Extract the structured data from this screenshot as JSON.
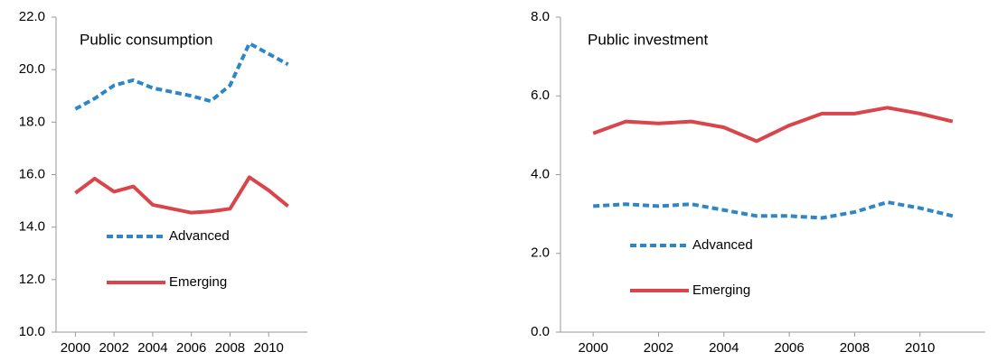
{
  "chart_data": [
    {
      "type": "line",
      "title": "Public consumption",
      "x": [
        2000,
        2001,
        2002,
        2003,
        2004,
        2005,
        2006,
        2007,
        2008,
        2009,
        2010,
        2011
      ],
      "xlim": [
        1999,
        2012
      ],
      "xticks": [
        2000,
        2002,
        2004,
        2006,
        2008,
        2010
      ],
      "ylim": [
        10,
        22
      ],
      "yticks": [
        {
          "value": 10,
          "label": "10.0"
        },
        {
          "value": 12,
          "label": "12.0"
        },
        {
          "value": 14,
          "label": "14.0"
        },
        {
          "value": 16,
          "label": "16.0"
        },
        {
          "value": 18,
          "label": "18.0"
        },
        {
          "value": 20,
          "label": "20.0"
        },
        {
          "value": 22,
          "label": "22.0"
        }
      ],
      "series": [
        {
          "name": "Advanced",
          "color": "#2e86c8",
          "dashed": true,
          "values": [
            18.5,
            18.9,
            19.4,
            19.6,
            19.3,
            19.15,
            19.0,
            18.8,
            19.4,
            21.0,
            20.6,
            20.2
          ]
        },
        {
          "name": "Emerging",
          "color": "#d9454a",
          "dashed": false,
          "values": [
            15.3,
            15.85,
            15.35,
            15.55,
            14.85,
            14.7,
            14.55,
            14.6,
            14.7,
            15.9,
            15.4,
            14.8
          ]
        }
      ]
    },
    {
      "type": "line",
      "title": "Public investment",
      "x": [
        2000,
        2001,
        2002,
        2003,
        2004,
        2005,
        2006,
        2007,
        2008,
        2009,
        2010,
        2011
      ],
      "xlim": [
        1999,
        2012
      ],
      "xticks": [
        2000,
        2002,
        2004,
        2006,
        2008,
        2010
      ],
      "ylim": [
        0,
        8
      ],
      "yticks": [
        {
          "value": 0,
          "label": "0.0"
        },
        {
          "value": 2,
          "label": "2.0"
        },
        {
          "value": 4,
          "label": "4.0"
        },
        {
          "value": 6,
          "label": "6.0"
        },
        {
          "value": 8,
          "label": "8.0"
        }
      ],
      "series": [
        {
          "name": "Advanced",
          "color": "#2e86c8",
          "dashed": true,
          "values": [
            3.2,
            3.25,
            3.2,
            3.25,
            3.1,
            2.95,
            2.95,
            2.9,
            3.05,
            3.3,
            3.15,
            2.95
          ]
        },
        {
          "name": "Emerging",
          "color": "#d9454a",
          "dashed": false,
          "values": [
            5.05,
            5.35,
            5.3,
            5.35,
            5.2,
            4.85,
            5.25,
            5.55,
            5.55,
            5.7,
            5.55,
            5.35
          ]
        }
      ]
    }
  ]
}
